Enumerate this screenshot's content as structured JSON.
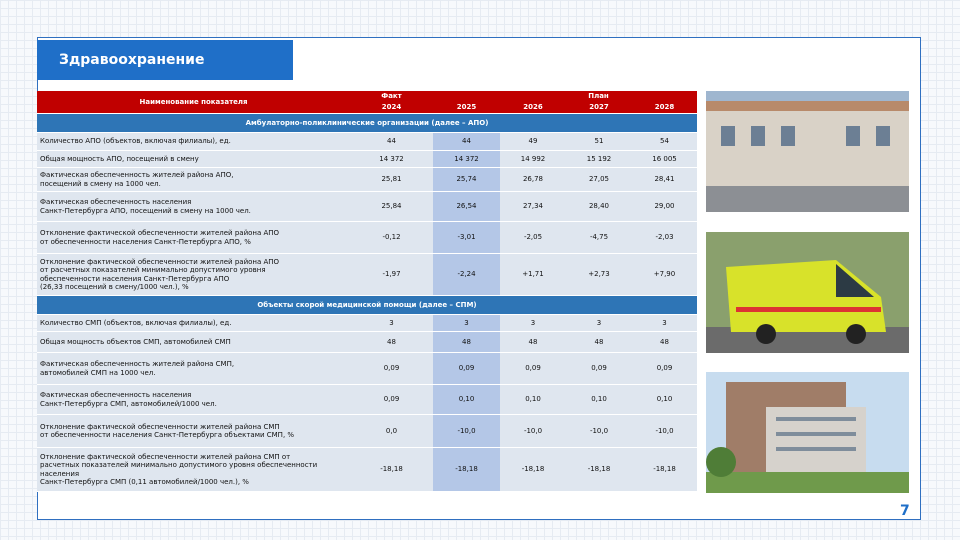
{
  "title": "Здравоохранение",
  "page_number": "7",
  "table": {
    "header": {
      "name": "Наименование показателя",
      "fact": "Факт",
      "plan": "План",
      "years": [
        "2024",
        "2025",
        "2026",
        "2027",
        "2028"
      ]
    },
    "sections": [
      {
        "title": "Амбулаторно-поликлинические организации (далее – АПО)",
        "rows": [
          {
            "label": "Количество АПО (объектов, включая филиалы), ед.",
            "values": [
              "44",
              "44",
              "49",
              "51",
              "54"
            ]
          },
          {
            "label": "Общая мощность АПО, посещений в смену",
            "values": [
              "14 372",
              "14 372",
              "14 992",
              "15 192",
              "16 005"
            ]
          },
          {
            "label": "Фактическая обеспеченность жителей района АПО,\nпосещений в смену на 1000 чел.",
            "values": [
              "25,81",
              "25,74",
              "26,78",
              "27,05",
              "28,41"
            ]
          },
          {
            "label": "Фактическая обеспеченность населения\nСанкт-Петербурга АПО, посещений в смену на 1000 чел.",
            "values": [
              "25,84",
              "26,54",
              "27,34",
              "28,40",
              "29,00"
            ]
          },
          {
            "label": "Отклонение фактической обеспеченности жителей района АПО\nот обеспеченности населения Санкт-Петербурга АПО, %",
            "values": [
              "-0,12",
              "-3,01",
              "-2,05",
              "-4,75",
              "-2,03"
            ]
          },
          {
            "label": "Отклонение фактической обеспеченности жителей района АПО\nот расчетных показателей минимально допустимого уровня\nобеспеченности населения Санкт-Петербурга АПО\n(26,33 посещений в смену/1000 чел.), %",
            "values": [
              "-1,97",
              "-2,24",
              "+1,71",
              "+2,73",
              "+7,90"
            ]
          }
        ]
      },
      {
        "title": "Объекты скорой медицинской помощи (далее – СПМ)",
        "rows": [
          {
            "label": "Количество СМП (объектов, включая филиалы), ед.",
            "values": [
              "3",
              "3",
              "3",
              "3",
              "3"
            ]
          },
          {
            "label": "Общая мощность объектов СМП, автомобилей СМП",
            "values": [
              "48",
              "48",
              "48",
              "48",
              "48"
            ]
          },
          {
            "label": "Фактическая обеспеченность жителей района СМП,\nавтомобилей СМП на 1000 чел.",
            "values": [
              "0,09",
              "0,09",
              "0,09",
              "0,09",
              "0,09"
            ]
          },
          {
            "label": "Фактическая обеспеченность населения\nСанкт-Петербурга СМП, автомобилей/1000 чел.",
            "values": [
              "0,09",
              "0,10",
              "0,10",
              "0,10",
              "0,10"
            ]
          },
          {
            "label": "Отклонение фактической обеспеченности жителей района СМП\nот обеспеченности населения Санкт-Петербурга объектами СМП, %",
            "values": [
              "0,0",
              "-10,0",
              "-10,0",
              "-10,0",
              "-10,0"
            ]
          },
          {
            "label": "Отклонение фактической обеспеченности жителей района СМП от\nрасчетных показателей минимально допустимого уровня обеспеченности\nнаселения\nСанкт-Петербурга СМП (0,11 автомобилей/1000 чел.), %",
            "values": [
              "-18,18",
              "-18,18",
              "-18,18",
              "-18,18",
              "-18,18"
            ]
          }
        ]
      }
    ]
  }
}
